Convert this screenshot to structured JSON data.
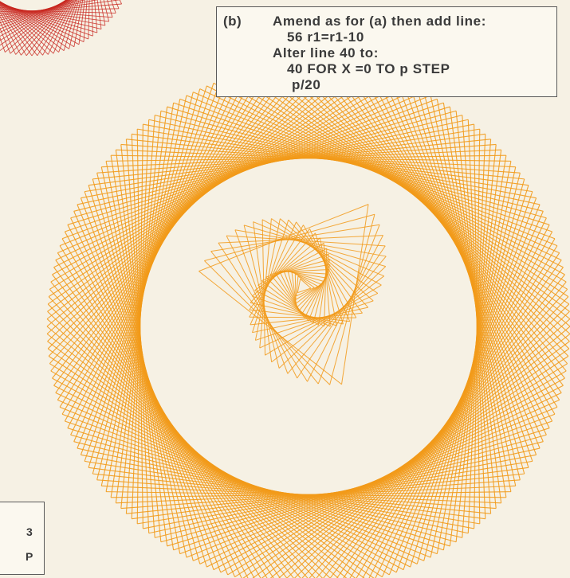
{
  "caption": {
    "tag": "(b)",
    "lines": [
      "Amend as for (a) then add line:",
      "56 r1=r1-10",
      "Alter line 40 to:",
      "40 FOR X =0 TO p STEP",
      "p/20"
    ]
  },
  "corner_panel": {
    "text_1": "3",
    "text_2": "P"
  },
  "colors": {
    "background": "#f6f1e4",
    "orange_pattern": "#f29a1a",
    "red_pattern": "#c8261e",
    "text": "#3a3a3a"
  }
}
